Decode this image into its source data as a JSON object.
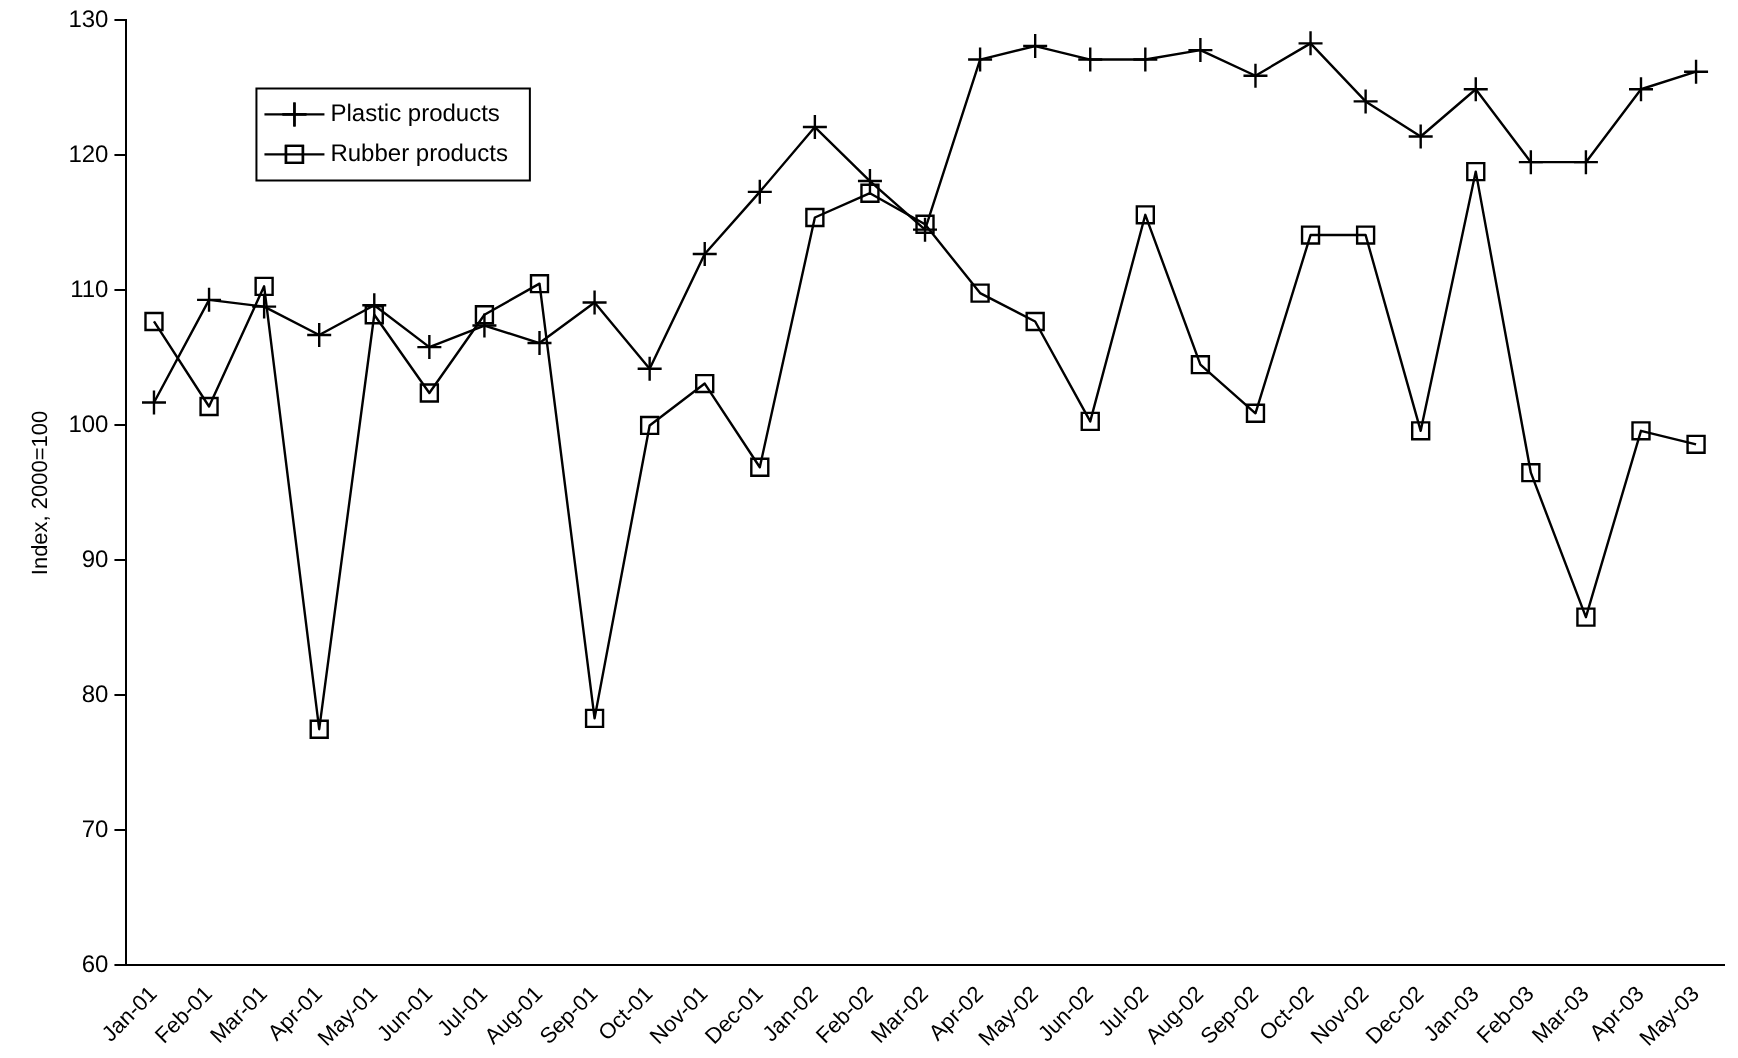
{
  "chart_data": {
    "type": "line",
    "ylabel": "Index, 2000=100",
    "categories": [
      "Jan-01",
      "Feb-01",
      "Mar-01",
      "Apr-01",
      "May-01",
      "Jun-01",
      "Jul-01",
      "Aug-01",
      "Sep-01",
      "Oct-01",
      "Nov-01",
      "Dec-01",
      "Jan-02",
      "Feb-02",
      "Mar-02",
      "Apr-02",
      "May-02",
      "Jun-02",
      "Jul-02",
      "Aug-02",
      "Sep-02",
      "Oct-02",
      "Nov-02",
      "Dec-02",
      "Jan-03",
      "Feb-03",
      "Mar-03",
      "Apr-03",
      "May-03"
    ],
    "series": [
      {
        "name": "Plastic products",
        "color": "#000000",
        "marker": "cross",
        "values": [
          101.7,
          109.3,
          108.8,
          106.7,
          108.9,
          105.8,
          107.4,
          106.1,
          109.1,
          104.2,
          112.7,
          117.3,
          122.1,
          118.1,
          114.5,
          127.1,
          128.1,
          127.1,
          127.1,
          127.8,
          125.9,
          128.3,
          124.0,
          121.4,
          124.9,
          119.5,
          119.5,
          124.9,
          126.2
        ]
      },
      {
        "name": "Rubber products",
        "color": "#000000",
        "marker": "square",
        "values": [
          107.7,
          101.4,
          110.3,
          77.5,
          108.2,
          102.4,
          108.2,
          110.5,
          78.3,
          100.0,
          103.1,
          96.9,
          115.4,
          117.2,
          114.9,
          109.8,
          107.7,
          100.3,
          115.6,
          104.5,
          100.9,
          114.1,
          114.1,
          99.6,
          118.8,
          96.5,
          85.8,
          99.6,
          98.6
        ]
      }
    ],
    "ylim": [
      60,
      130
    ],
    "yticks": [
      60,
      70,
      80,
      90,
      100,
      110,
      120,
      130
    ],
    "grid": false,
    "legend": "top left",
    "line_style": "solid"
  }
}
